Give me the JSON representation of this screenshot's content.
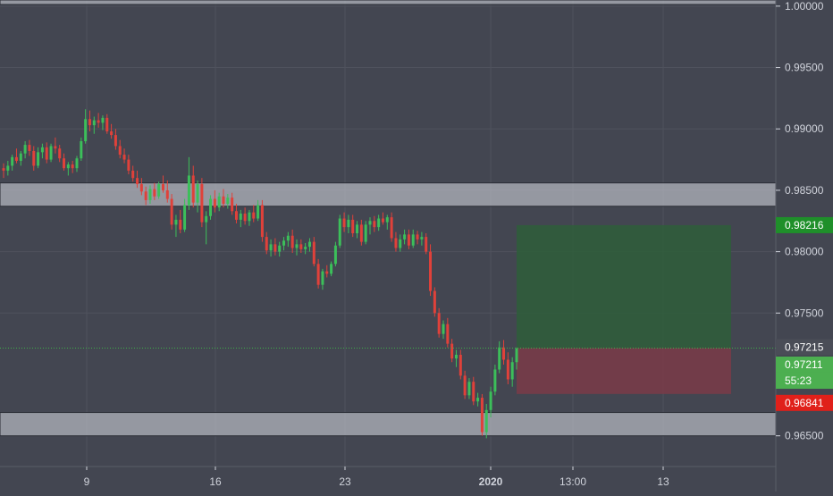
{
  "colors": {
    "background": "#434651",
    "grid": "#4f525d",
    "up": "#26a69a",
    "up_body": "#3cbf5a",
    "down": "#e0413a",
    "axis_text": "#d1d4dc",
    "zone": "#b6b9c0",
    "profit": "#2e5e3a",
    "loss": "#7a3b48",
    "target_tag": "#1f8f2a",
    "stop_tag": "#e0201a",
    "last_tag": "#4caf50",
    "entry_tag": "#4a4d57"
  },
  "chart_data": {
    "type": "candlestick",
    "ylim": [
      0.9625,
      1.0005
    ],
    "y_ticks": [
      "1.00000",
      "0.99500",
      "0.99000",
      "0.98500",
      "0.98000",
      "0.97500",
      "0.96500"
    ],
    "x_ticks": [
      "9",
      "16",
      "23",
      "2020",
      "13:00",
      "13"
    ],
    "grid": true,
    "price_labels": {
      "target": "0.98216",
      "entry": "0.97215",
      "last": "0.97211",
      "countdown": "55:23",
      "stop": "0.96841"
    },
    "zones": [
      {
        "low": 0.9837,
        "high": 0.9856
      },
      {
        "low": 0.965,
        "high": 0.9669
      }
    ],
    "position": {
      "entry": 0.97215,
      "target": 0.98216,
      "stop": 0.96841
    },
    "candles": [
      [
        0.9868,
        0.9872,
        0.986,
        0.9866
      ],
      [
        0.9866,
        0.9874,
        0.9862,
        0.987
      ],
      [
        0.987,
        0.9879,
        0.9866,
        0.9877
      ],
      [
        0.9877,
        0.9884,
        0.9872,
        0.9874
      ],
      [
        0.9874,
        0.9882,
        0.987,
        0.988
      ],
      [
        0.988,
        0.989,
        0.9876,
        0.9887
      ],
      [
        0.9887,
        0.9891,
        0.9878,
        0.9882
      ],
      [
        0.9882,
        0.9886,
        0.9866,
        0.987
      ],
      [
        0.987,
        0.9885,
        0.9868,
        0.9881
      ],
      [
        0.9881,
        0.9888,
        0.9876,
        0.9885
      ],
      [
        0.9885,
        0.9889,
        0.9872,
        0.9875
      ],
      [
        0.9875,
        0.9888,
        0.9873,
        0.9886
      ],
      [
        0.9886,
        0.9893,
        0.988,
        0.9884
      ],
      [
        0.9884,
        0.9887,
        0.9873,
        0.9876
      ],
      [
        0.9876,
        0.988,
        0.9866,
        0.9868
      ],
      [
        0.9868,
        0.9873,
        0.9862,
        0.9871
      ],
      [
        0.9871,
        0.9874,
        0.9864,
        0.9868
      ],
      [
        0.9868,
        0.9878,
        0.9865,
        0.9876
      ],
      [
        0.9876,
        0.9893,
        0.9874,
        0.989
      ],
      [
        0.989,
        0.9916,
        0.9888,
        0.9908
      ],
      [
        0.9908,
        0.9915,
        0.9898,
        0.9903
      ],
      [
        0.9903,
        0.991,
        0.9896,
        0.9907
      ],
      [
        0.9907,
        0.9913,
        0.9901,
        0.9905
      ],
      [
        0.9905,
        0.9911,
        0.9899,
        0.9909
      ],
      [
        0.9909,
        0.9912,
        0.9896,
        0.9898
      ],
      [
        0.9898,
        0.9904,
        0.9892,
        0.9895
      ],
      [
        0.9895,
        0.99,
        0.9883,
        0.9886
      ],
      [
        0.9886,
        0.9891,
        0.9876,
        0.9879
      ],
      [
        0.9879,
        0.9884,
        0.9872,
        0.9875
      ],
      [
        0.9875,
        0.9879,
        0.9863,
        0.9866
      ],
      [
        0.9866,
        0.987,
        0.9857,
        0.986
      ],
      [
        0.986,
        0.9866,
        0.9852,
        0.9855
      ],
      [
        0.9855,
        0.986,
        0.9846,
        0.9849
      ],
      [
        0.9849,
        0.9853,
        0.9838,
        0.9842
      ],
      [
        0.9842,
        0.9854,
        0.9839,
        0.9851
      ],
      [
        0.9851,
        0.9856,
        0.9842,
        0.9845
      ],
      [
        0.9845,
        0.9857,
        0.9843,
        0.9855
      ],
      [
        0.9855,
        0.9862,
        0.9848,
        0.985
      ],
      [
        0.985,
        0.9858,
        0.984,
        0.9843
      ],
      [
        0.9843,
        0.9847,
        0.9818,
        0.9822
      ],
      [
        0.9822,
        0.983,
        0.9812,
        0.9826
      ],
      [
        0.9826,
        0.9834,
        0.9815,
        0.9818
      ],
      [
        0.9818,
        0.9843,
        0.9816,
        0.9838
      ],
      [
        0.9838,
        0.9877,
        0.9834,
        0.9862
      ],
      [
        0.9862,
        0.987,
        0.9836,
        0.984
      ],
      [
        0.984,
        0.9858,
        0.9832,
        0.9855
      ],
      [
        0.9855,
        0.986,
        0.982,
        0.9824
      ],
      [
        0.9824,
        0.9833,
        0.9806,
        0.9829
      ],
      [
        0.9829,
        0.9846,
        0.9826,
        0.9843
      ],
      [
        0.9843,
        0.985,
        0.9832,
        0.9836
      ],
      [
        0.9836,
        0.9848,
        0.9833,
        0.9845
      ],
      [
        0.9845,
        0.9851,
        0.9836,
        0.9839
      ],
      [
        0.9839,
        0.9847,
        0.9835,
        0.9844
      ],
      [
        0.9844,
        0.9848,
        0.983,
        0.9833
      ],
      [
        0.9833,
        0.9839,
        0.9823,
        0.9826
      ],
      [
        0.9826,
        0.9834,
        0.982,
        0.9831
      ],
      [
        0.9831,
        0.9836,
        0.9822,
        0.9825
      ],
      [
        0.9825,
        0.9834,
        0.9821,
        0.9832
      ],
      [
        0.9832,
        0.9838,
        0.9824,
        0.9827
      ],
      [
        0.9827,
        0.9842,
        0.9825,
        0.9838
      ],
      [
        0.9838,
        0.9842,
        0.9808,
        0.9812
      ],
      [
        0.9812,
        0.9816,
        0.9798,
        0.9801
      ],
      [
        0.9801,
        0.981,
        0.9796,
        0.9806
      ],
      [
        0.9806,
        0.9811,
        0.9797,
        0.98
      ],
      [
        0.98,
        0.9808,
        0.9796,
        0.9805
      ],
      [
        0.9805,
        0.9812,
        0.9801,
        0.9809
      ],
      [
        0.9809,
        0.9816,
        0.9804,
        0.9813
      ],
      [
        0.9813,
        0.9818,
        0.9799,
        0.9803
      ],
      [
        0.9803,
        0.981,
        0.9797,
        0.9806
      ],
      [
        0.9806,
        0.981,
        0.9799,
        0.9802
      ],
      [
        0.9802,
        0.9807,
        0.9798,
        0.9804
      ],
      [
        0.9804,
        0.9811,
        0.98,
        0.9808
      ],
      [
        0.9808,
        0.9812,
        0.9788,
        0.979
      ],
      [
        0.979,
        0.9794,
        0.977,
        0.9773
      ],
      [
        0.9773,
        0.9786,
        0.9769,
        0.9784
      ],
      [
        0.9784,
        0.9789,
        0.9779,
        0.9782
      ],
      [
        0.9782,
        0.9792,
        0.978,
        0.979
      ],
      [
        0.979,
        0.9808,
        0.9788,
        0.9805
      ],
      [
        0.9805,
        0.983,
        0.9803,
        0.9827
      ],
      [
        0.9827,
        0.9832,
        0.9816,
        0.982
      ],
      [
        0.982,
        0.983,
        0.9815,
        0.9826
      ],
      [
        0.9826,
        0.983,
        0.9812,
        0.9815
      ],
      [
        0.9815,
        0.9825,
        0.9811,
        0.9822
      ],
      [
        0.9822,
        0.9826,
        0.9805,
        0.9808
      ],
      [
        0.9808,
        0.9825,
        0.9806,
        0.9822
      ],
      [
        0.9822,
        0.9828,
        0.9814,
        0.9825
      ],
      [
        0.9825,
        0.9829,
        0.9816,
        0.982
      ],
      [
        0.982,
        0.983,
        0.9817,
        0.9827
      ],
      [
        0.9827,
        0.9832,
        0.9822,
        0.9824
      ],
      [
        0.9824,
        0.983,
        0.9818,
        0.9828
      ],
      [
        0.9828,
        0.9832,
        0.9808,
        0.9811
      ],
      [
        0.9811,
        0.9816,
        0.98,
        0.9803
      ],
      [
        0.9803,
        0.9814,
        0.98,
        0.981
      ],
      [
        0.981,
        0.9818,
        0.9806,
        0.9814
      ],
      [
        0.9814,
        0.9818,
        0.9802,
        0.9805
      ],
      [
        0.9805,
        0.9818,
        0.9803,
        0.9814
      ],
      [
        0.9814,
        0.9817,
        0.9806,
        0.981
      ],
      [
        0.981,
        0.9816,
        0.9805,
        0.9812
      ],
      [
        0.9812,
        0.9815,
        0.9798,
        0.98
      ],
      [
        0.98,
        0.9806,
        0.9764,
        0.9768
      ],
      [
        0.9768,
        0.9771,
        0.9747,
        0.975
      ],
      [
        0.975,
        0.9754,
        0.973,
        0.9733
      ],
      [
        0.9733,
        0.9744,
        0.9729,
        0.9741
      ],
      [
        0.9741,
        0.9746,
        0.9722,
        0.9725
      ],
      [
        0.9725,
        0.9729,
        0.971,
        0.9713
      ],
      [
        0.9713,
        0.972,
        0.9706,
        0.9716
      ],
      [
        0.9716,
        0.972,
        0.9696,
        0.9699
      ],
      [
        0.9699,
        0.9703,
        0.968,
        0.9683
      ],
      [
        0.9683,
        0.9697,
        0.968,
        0.9694
      ],
      [
        0.9694,
        0.9698,
        0.9675,
        0.9678
      ],
      [
        0.9678,
        0.9685,
        0.9674,
        0.9681
      ],
      [
        0.9681,
        0.9684,
        0.965,
        0.9653
      ],
      [
        0.9653,
        0.9676,
        0.9648,
        0.9671
      ],
      [
        0.9671,
        0.969,
        0.9665,
        0.9686
      ],
      [
        0.9686,
        0.9708,
        0.9683,
        0.9704
      ],
      [
        0.9704,
        0.9727,
        0.9701,
        0.9722
      ],
      [
        0.9722,
        0.9728,
        0.9708,
        0.9712
      ],
      [
        0.9712,
        0.9718,
        0.9692,
        0.9696
      ],
      [
        0.9696,
        0.9714,
        0.969,
        0.971
      ],
      [
        0.971,
        0.9722,
        0.9704,
        0.9721
      ]
    ]
  }
}
